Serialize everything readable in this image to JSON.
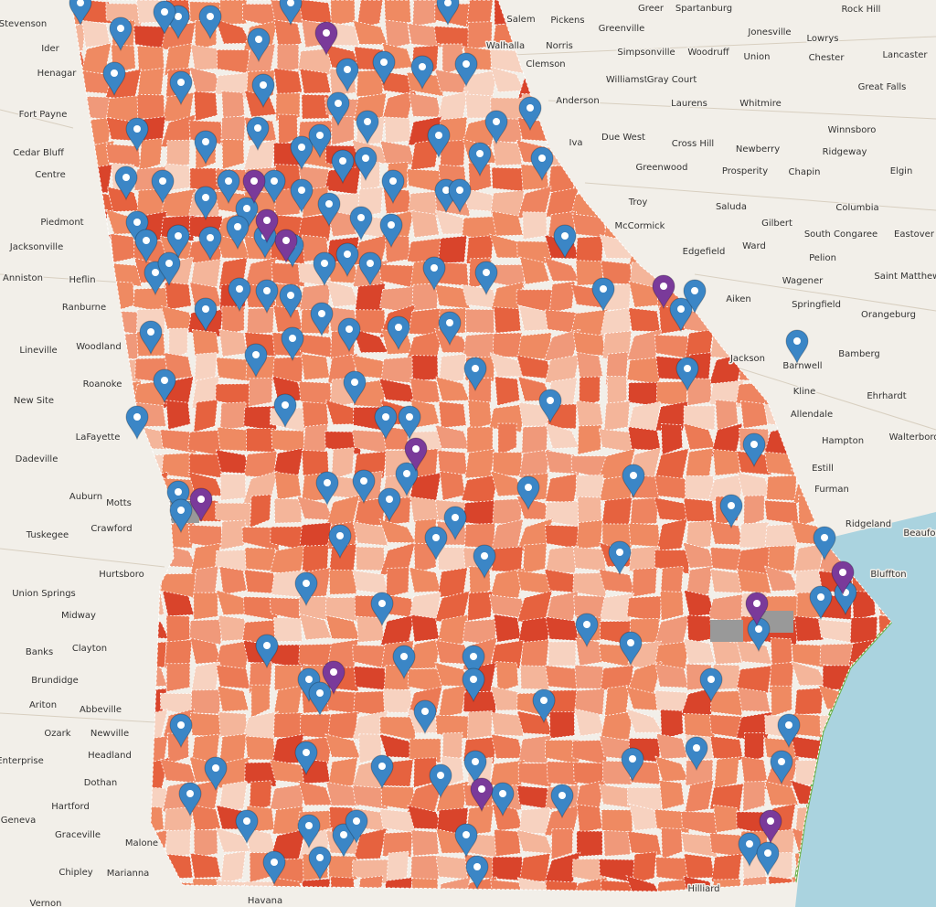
{
  "map": {
    "places": [
      "Stevenson",
      "Ider",
      "Henagar",
      "Fort Payne",
      "Cedar Bluff",
      "Centre",
      "Piedmont",
      "Jacksonville",
      "Anniston",
      "Heflin",
      "Ranburne",
      "Lineville",
      "Woodland",
      "Roanoke",
      "New Site",
      "Dadeville",
      "LaFayette",
      "Auburn",
      "Motts",
      "Crawford",
      "Tuskegee",
      "Hurtsboro",
      "Union Springs",
      "Midway",
      "Banks",
      "Clayton",
      "Brundidge",
      "Ariton",
      "Abbeville",
      "Ozark",
      "Newville",
      "Headland",
      "Enterprise",
      "Dothan",
      "Hartford",
      "Geneva",
      "Graceville",
      "Malone",
      "Chipley",
      "Marianna",
      "Vernon",
      "Havana",
      "Salem",
      "Pickens",
      "Greer",
      "Spartanburg",
      "Walhalla",
      "Norris",
      "Greenville",
      "Clemson",
      "Simpsonville",
      "Woodruff",
      "Union",
      "Jonesville",
      "Lowrys",
      "Chester",
      "Lancaster",
      "Rock Hill",
      "Williamston",
      "Gray Court",
      "Anderson",
      "Laurens",
      "Whitmire",
      "Great Falls",
      "Iva",
      "Due West",
      "Cross Hill",
      "Newberry",
      "Winnsboro",
      "Ridgeway",
      "Greenwood",
      "Prosperity",
      "Chapin",
      "Elgin",
      "Troy",
      "Saluda",
      "Gilbert",
      "Columbia",
      "McCormick",
      "Edgefield",
      "Ward",
      "South Congaree",
      "Eastover",
      "Pelion",
      "Wagener",
      "Saint Matthews",
      "Aiken",
      "Springfield",
      "Orangeburg",
      "Jackson",
      "Barnwell",
      "Bamberg",
      "Kline",
      "Ehrhardt",
      "Allendale",
      "Hampton",
      "Walterboro",
      "Estill",
      "Furman",
      "Ridgeland",
      "Beaufort",
      "Bluffton",
      "Hilliard"
    ]
  }
}
